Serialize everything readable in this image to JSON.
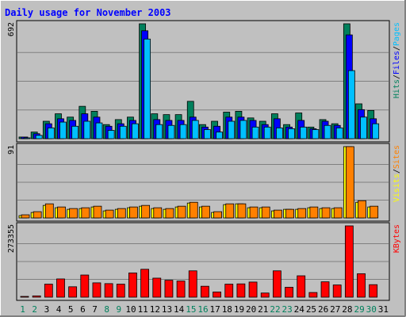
{
  "title": "Daily usage for November 2003",
  "colors": {
    "background": "#C0C0C0",
    "panel": "#C0C0C0",
    "border": "#000000",
    "hits": "#00805C",
    "files": "#0000FF",
    "pages": "#00C0FF",
    "visits": "#FFFF00",
    "sites": "#FF8000",
    "kbytes": "#FF0000",
    "title": "#0000FF",
    "day_normal": "#000000",
    "day_weekend": "#00805C"
  },
  "chart_data": [
    {
      "type": "bar",
      "panel": "top",
      "title": "Daily usage for November 2003",
      "categories": [
        "1",
        "2",
        "3",
        "4",
        "5",
        "6",
        "7",
        "8",
        "9",
        "10",
        "11",
        "12",
        "13",
        "14",
        "15",
        "16",
        "17",
        "18",
        "19",
        "20",
        "21",
        "22",
        "23",
        "24",
        "25",
        "26",
        "27",
        "28",
        "29",
        "30",
        "31"
      ],
      "ymax_label": "692",
      "ylim": [
        0,
        692
      ],
      "legend": [
        "Pages",
        "Files",
        "Hits"
      ],
      "series": [
        {
          "name": "Hits",
          "values": [
            10,
            40,
            105,
            150,
            130,
            195,
            165,
            85,
            115,
            130,
            692,
            150,
            145,
            145,
            225,
            85,
            105,
            160,
            165,
            125,
            105,
            150,
            85,
            155,
            70,
            115,
            90,
            692,
            210,
            170,
            0
          ]
        },
        {
          "name": "Files",
          "values": [
            10,
            30,
            90,
            120,
            110,
            150,
            130,
            75,
            90,
            110,
            650,
            115,
            110,
            110,
            130,
            70,
            75,
            130,
            130,
            110,
            85,
            120,
            70,
            110,
            60,
            105,
            80,
            625,
            175,
            120,
            0
          ]
        },
        {
          "name": "Pages",
          "values": [
            5,
            20,
            65,
            100,
            75,
            105,
            95,
            50,
            75,
            90,
            600,
            85,
            80,
            85,
            110,
            55,
            40,
            105,
            110,
            70,
            70,
            65,
            60,
            70,
            55,
            80,
            65,
            410,
            130,
            90,
            0
          ]
        }
      ]
    },
    {
      "type": "bar",
      "panel": "middle",
      "ymax_label": "91",
      "ylim": [
        0,
        91
      ],
      "legend": [
        "Sites",
        "Visits"
      ],
      "series": [
        {
          "name": "Visits",
          "values": [
            3,
            7,
            16,
            13,
            11,
            12,
            14,
            9,
            11,
            13,
            15,
            12,
            11,
            14,
            19,
            14,
            7,
            17,
            18,
            13,
            13,
            9,
            11,
            11,
            13,
            12,
            12,
            91,
            20,
            14,
            0
          ]
        },
        {
          "name": "Sites",
          "values": [
            4,
            8,
            18,
            14,
            12,
            13,
            15,
            10,
            12,
            14,
            16,
            13,
            12,
            15,
            20,
            15,
            8,
            18,
            18,
            14,
            14,
            10,
            11,
            12,
            14,
            13,
            13,
            91,
            22,
            15,
            0
          ]
        }
      ]
    },
    {
      "type": "bar",
      "panel": "bottom",
      "ymax_label": "273355",
      "ylim": [
        0,
        273355
      ],
      "legend": [
        "KBytes"
      ],
      "series": [
        {
          "name": "KBytes",
          "values": [
            2000,
            5000,
            50000,
            70000,
            40000,
            85000,
            55000,
            52000,
            50000,
            93000,
            107000,
            73000,
            65000,
            62000,
            101000,
            42000,
            20000,
            50000,
            51000,
            58000,
            16000,
            101000,
            38000,
            82000,
            18000,
            59000,
            47000,
            273355,
            90000,
            48000,
            0
          ]
        }
      ]
    }
  ]
}
